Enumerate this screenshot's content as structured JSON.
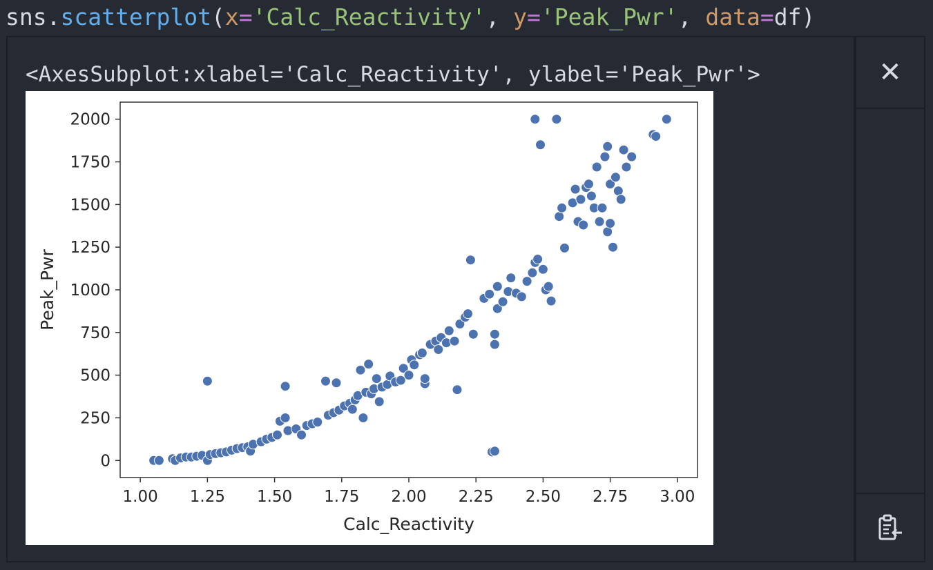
{
  "code": {
    "fn_prefix": "sns.",
    "fn_name": "scatterplot",
    "open": "(",
    "arg1_name": "x",
    "eq": "=",
    "arg1_value": "'Calc_Reactivity'",
    "sep": ", ",
    "arg2_name": "y",
    "arg2_value": "'Peak_Pwr'",
    "arg3_name": "data",
    "arg3_value": "df",
    "close": ")"
  },
  "output": {
    "repr": "<AxesSubplot:xlabel='Calc_Reactivity', ylabel='Peak_Pwr'>"
  },
  "sidebar": {
    "close_icon": "close-icon",
    "clipboard_icon": "clipboard-icon"
  },
  "colors": {
    "background": "#262a33",
    "point_fill": "#4c72b0",
    "point_edge": "#ffffff"
  },
  "chart_data": {
    "type": "scatter",
    "xlabel": "Calc_Reactivity",
    "ylabel": "Peak_Pwr",
    "xlim": [
      1.0,
      3.0
    ],
    "ylim": [
      -100,
      2100
    ],
    "xticks": [
      "1.00",
      "1.25",
      "1.50",
      "1.75",
      "2.00",
      "2.25",
      "2.50",
      "2.75",
      "3.00"
    ],
    "yticks": [
      "0",
      "250",
      "500",
      "750",
      "1000",
      "1250",
      "1500",
      "1750",
      "2000"
    ],
    "grid": false,
    "points": [
      [
        1.05,
        0
      ],
      [
        1.07,
        0
      ],
      [
        1.12,
        10
      ],
      [
        1.13,
        0
      ],
      [
        1.15,
        15
      ],
      [
        1.17,
        20
      ],
      [
        1.19,
        20
      ],
      [
        1.21,
        25
      ],
      [
        1.23,
        30
      ],
      [
        1.25,
        0
      ],
      [
        1.25,
        465
      ],
      [
        1.26,
        35
      ],
      [
        1.28,
        40
      ],
      [
        1.3,
        45
      ],
      [
        1.32,
        50
      ],
      [
        1.34,
        60
      ],
      [
        1.36,
        70
      ],
      [
        1.38,
        75
      ],
      [
        1.4,
        80
      ],
      [
        1.41,
        55
      ],
      [
        1.42,
        95
      ],
      [
        1.45,
        110
      ],
      [
        1.47,
        125
      ],
      [
        1.49,
        135
      ],
      [
        1.51,
        150
      ],
      [
        1.52,
        230
      ],
      [
        1.54,
        250
      ],
      [
        1.54,
        435
      ],
      [
        1.55,
        175
      ],
      [
        1.58,
        185
      ],
      [
        1.6,
        150
      ],
      [
        1.62,
        205
      ],
      [
        1.64,
        215
      ],
      [
        1.66,
        225
      ],
      [
        1.69,
        465
      ],
      [
        1.7,
        265
      ],
      [
        1.72,
        280
      ],
      [
        1.73,
        455
      ],
      [
        1.74,
        295
      ],
      [
        1.76,
        320
      ],
      [
        1.78,
        335
      ],
      [
        1.79,
        300
      ],
      [
        1.8,
        355
      ],
      [
        1.81,
        380
      ],
      [
        1.82,
        530
      ],
      [
        1.83,
        250
      ],
      [
        1.84,
        400
      ],
      [
        1.85,
        565
      ],
      [
        1.86,
        390
      ],
      [
        1.87,
        420
      ],
      [
        1.88,
        480
      ],
      [
        1.89,
        345
      ],
      [
        1.9,
        430
      ],
      [
        1.92,
        445
      ],
      [
        1.93,
        495
      ],
      [
        1.95,
        460
      ],
      [
        1.97,
        470
      ],
      [
        1.98,
        540
      ],
      [
        2.0,
        500
      ],
      [
        2.01,
        590
      ],
      [
        2.02,
        560
      ],
      [
        2.04,
        620
      ],
      [
        2.05,
        630
      ],
      [
        2.06,
        450
      ],
      [
        2.06,
        480
      ],
      [
        2.08,
        680
      ],
      [
        2.1,
        700
      ],
      [
        2.11,
        650
      ],
      [
        2.12,
        720
      ],
      [
        2.14,
        690
      ],
      [
        2.15,
        760
      ],
      [
        2.17,
        700
      ],
      [
        2.18,
        415
      ],
      [
        2.19,
        800
      ],
      [
        2.21,
        840
      ],
      [
        2.22,
        860
      ],
      [
        2.23,
        1175
      ],
      [
        2.24,
        740
      ],
      [
        2.28,
        950
      ],
      [
        2.3,
        975
      ],
      [
        2.31,
        50
      ],
      [
        2.32,
        55
      ],
      [
        2.32,
        740
      ],
      [
        2.32,
        680
      ],
      [
        2.33,
        1020
      ],
      [
        2.33,
        890
      ],
      [
        2.35,
        930
      ],
      [
        2.37,
        990
      ],
      [
        2.38,
        1070
      ],
      [
        2.4,
        980
      ],
      [
        2.42,
        960
      ],
      [
        2.44,
        1050
      ],
      [
        2.46,
        1100
      ],
      [
        2.47,
        2000
      ],
      [
        2.47,
        1160
      ],
      [
        2.48,
        1180
      ],
      [
        2.49,
        1850
      ],
      [
        2.5,
        1120
      ],
      [
        2.51,
        1000
      ],
      [
        2.52,
        1020
      ],
      [
        2.53,
        935
      ],
      [
        2.55,
        2000
      ],
      [
        2.56,
        1430
      ],
      [
        2.57,
        1480
      ],
      [
        2.58,
        1245
      ],
      [
        2.61,
        1510
      ],
      [
        2.62,
        1590
      ],
      [
        2.63,
        1400
      ],
      [
        2.64,
        1530
      ],
      [
        2.65,
        1380
      ],
      [
        2.66,
        1600
      ],
      [
        2.67,
        1620
      ],
      [
        2.68,
        1550
      ],
      [
        2.69,
        1480
      ],
      [
        2.7,
        1720
      ],
      [
        2.71,
        1400
      ],
      [
        2.72,
        1480
      ],
      [
        2.73,
        1780
      ],
      [
        2.74,
        1340
      ],
      [
        2.74,
        1840
      ],
      [
        2.75,
        1620
      ],
      [
        2.75,
        1390
      ],
      [
        2.76,
        1250
      ],
      [
        2.77,
        1660
      ],
      [
        2.78,
        1580
      ],
      [
        2.79,
        1530
      ],
      [
        2.8,
        1820
      ],
      [
        2.81,
        1720
      ],
      [
        2.83,
        1780
      ],
      [
        2.91,
        1910
      ],
      [
        2.92,
        1900
      ],
      [
        2.96,
        2000
      ]
    ]
  }
}
